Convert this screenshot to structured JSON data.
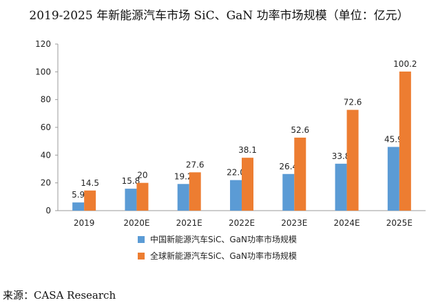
{
  "title": "2019-2025 年新能源汽车市场 SiC、GaN 功率市场规模（单位：亿元）",
  "source": "来源：CASA Research",
  "chart_data": {
    "type": "bar",
    "categories": [
      "2019",
      "2020E",
      "2021E",
      "2022E",
      "2023E",
      "2024E",
      "2025E"
    ],
    "series": [
      {
        "name": "中国新能源汽车SiC、GaN功率市场规模",
        "color": "#5B9BD5",
        "values": [
          5.9,
          15.8,
          19.2,
          22.0,
          26.4,
          33.8,
          45.9
        ],
        "labels": [
          "5.9",
          "15.8",
          "19.2",
          "22.0",
          "26.4",
          "33.8",
          "45.9"
        ]
      },
      {
        "name": "全球新能源汽车SiC、GaN功率市场规模",
        "color": "#ED7D31",
        "values": [
          14.5,
          20,
          27.6,
          38.1,
          52.6,
          72.6,
          100.2
        ],
        "labels": [
          "14.5",
          "20",
          "27.6",
          "38.1",
          "52.6",
          "72.6",
          "100.2"
        ]
      }
    ],
    "ylim": [
      0,
      120
    ],
    "yticks": [
      "0",
      "20",
      "40",
      "60",
      "80",
      "100",
      "120"
    ],
    "grid": false,
    "legend_position": "bottom"
  }
}
